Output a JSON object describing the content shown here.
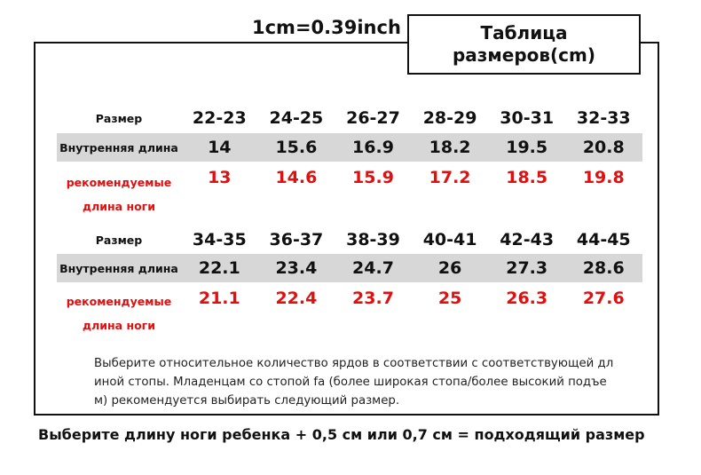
{
  "unit_note": "1cm=0.39inch",
  "title": {
    "line1": "Таблица",
    "line2": "размеров(cm)"
  },
  "labels": {
    "size": "Размер",
    "inner_length": "Внутренняя длина",
    "recommended_line1": "рекомендуемые",
    "recommended_line2": "длина ноги"
  },
  "tables": [
    {
      "sizes": [
        "22-23",
        "24-25",
        "26-27",
        "28-29",
        "30-31",
        "32-33"
      ],
      "inner_length": [
        "14",
        "15.6",
        "16.9",
        "18.2",
        "19.5",
        "20.8"
      ],
      "recommended": [
        "13",
        "14.6",
        "15.9",
        "17.2",
        "18.5",
        "19.8"
      ]
    },
    {
      "sizes": [
        "34-35",
        "36-37",
        "38-39",
        "40-41",
        "42-43",
        "44-45"
      ],
      "inner_length": [
        "22.1",
        "23.4",
        "24.7",
        "26",
        "27.3",
        "28.6"
      ],
      "recommended": [
        "21.1",
        "22.4",
        "23.7",
        "25",
        "26.3",
        "27.6"
      ]
    }
  ],
  "note": {
    "line1": "Выберите относительное количество ярдов в соответствии с соответствующей дл",
    "line2": "иной стопы. Младенцам со стопой fa (более широкая стопа/более высокий подъе",
    "line3": "м) рекомендуется выбирать следующий размер."
  },
  "footer": "Выберите длину ноги ребенка + 0,5 см или 0,7 см = подходящий размер",
  "colors": {
    "recommended": "#e01010",
    "row_highlight": "#d7d7d7",
    "border": "#111111"
  }
}
